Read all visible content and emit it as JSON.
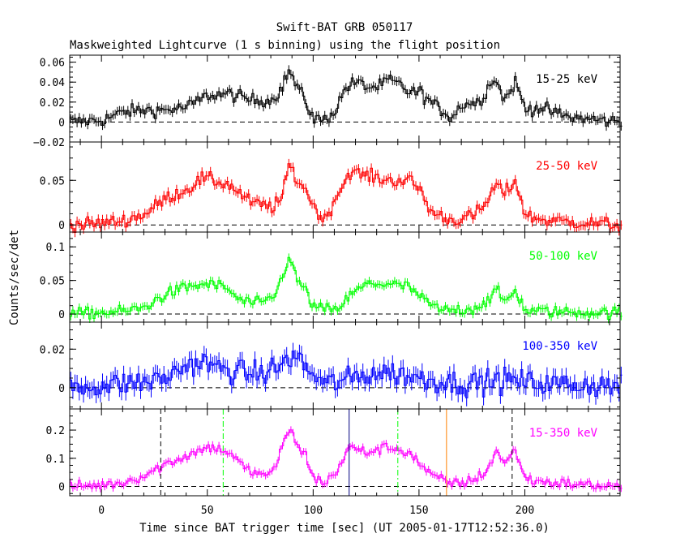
{
  "figure": {
    "title": "Swift-BAT GRB 050117",
    "subtitle": "Maskweighted Lightcurve (1 s binning) using the flight position",
    "xlabel": "Time since BAT trigger time [sec] (UT 2005-01-17T12:52:36.0)",
    "ylabel": "Counts/sec/det"
  },
  "colors": {
    "axes": "#000000",
    "black": "#000000",
    "red": "#ff0000",
    "green": "#00ff00",
    "blue": "#0000ff",
    "magenta": "#ff00ff",
    "orange": "#ff8000",
    "navy": "#000080"
  },
  "chart_data": {
    "type": "line",
    "title": "Swift-BAT GRB 050117",
    "subtitle": "Maskweighted Lightcurve (1 s binning) using the flight position",
    "xlabel": "Time since BAT trigger time [sec] (UT 2005-01-17T12:52:36.0)",
    "ylabel": "Counts/sec/det",
    "xlim": [
      -15,
      245
    ],
    "x_ticks": [
      0,
      50,
      100,
      150,
      200
    ],
    "x_tick_labels": [
      "0",
      "50",
      "100",
      "150",
      "200"
    ],
    "panels": [
      {
        "label": "15-25 keV",
        "color": "#000000",
        "ylim": [
          -0.02,
          0.067
        ],
        "y_ticks": [
          -0.02,
          0,
          0.02,
          0.04,
          0.06
        ],
        "y_tick_labels": [
          "−0.02",
          "0",
          "0.02",
          "0.04",
          "0.06"
        ],
        "envelope": [
          [
            -15,
            0.0
          ],
          [
            0,
            0.002
          ],
          [
            10,
            0.01
          ],
          [
            20,
            0.012
          ],
          [
            30,
            0.012
          ],
          [
            40,
            0.015
          ],
          [
            50,
            0.027
          ],
          [
            60,
            0.028
          ],
          [
            70,
            0.022
          ],
          [
            80,
            0.022
          ],
          [
            85,
            0.035
          ],
          [
            88,
            0.052
          ],
          [
            92,
            0.035
          ],
          [
            96,
            0.02
          ],
          [
            100,
            0.003
          ],
          [
            105,
            0.002
          ],
          [
            110,
            0.012
          ],
          [
            115,
            0.035
          ],
          [
            120,
            0.04
          ],
          [
            125,
            0.035
          ],
          [
            130,
            0.035
          ],
          [
            135,
            0.042
          ],
          [
            140,
            0.038
          ],
          [
            145,
            0.03
          ],
          [
            150,
            0.03
          ],
          [
            155,
            0.02
          ],
          [
            160,
            0.012
          ],
          [
            165,
            0.005
          ],
          [
            170,
            0.018
          ],
          [
            178,
            0.02
          ],
          [
            185,
            0.045
          ],
          [
            190,
            0.022
          ],
          [
            195,
            0.04
          ],
          [
            200,
            0.012
          ],
          [
            205,
            0.015
          ],
          [
            210,
            0.012
          ],
          [
            220,
            0.005
          ],
          [
            230,
            0.003
          ],
          [
            245,
            0.0
          ]
        ],
        "noise": 0.0065
      },
      {
        "label": "25-50 keV",
        "color": "#ff0000",
        "ylim": [
          -0.008,
          0.093
        ],
        "y_ticks": [
          0,
          0.05
        ],
        "y_tick_labels": [
          "0",
          "0.05"
        ],
        "envelope": [
          [
            -15,
            0.0
          ],
          [
            0,
            0.002
          ],
          [
            10,
            0.005
          ],
          [
            20,
            0.012
          ],
          [
            30,
            0.03
          ],
          [
            40,
            0.04
          ],
          [
            47,
            0.052
          ],
          [
            52,
            0.05
          ],
          [
            60,
            0.045
          ],
          [
            70,
            0.025
          ],
          [
            80,
            0.02
          ],
          [
            85,
            0.03
          ],
          [
            88,
            0.068
          ],
          [
            92,
            0.05
          ],
          [
            96,
            0.04
          ],
          [
            100,
            0.02
          ],
          [
            105,
            0.005
          ],
          [
            110,
            0.03
          ],
          [
            117,
            0.06
          ],
          [
            125,
            0.055
          ],
          [
            135,
            0.05
          ],
          [
            145,
            0.05
          ],
          [
            150,
            0.04
          ],
          [
            155,
            0.015
          ],
          [
            165,
            0.005
          ],
          [
            175,
            0.01
          ],
          [
            180,
            0.02
          ],
          [
            186,
            0.045
          ],
          [
            190,
            0.035
          ],
          [
            195,
            0.05
          ],
          [
            200,
            0.01
          ],
          [
            210,
            0.005
          ],
          [
            230,
            0.002
          ],
          [
            245,
            0.0
          ]
        ],
        "noise": 0.0075
      },
      {
        "label": "50-100 keV",
        "color": "#00ff00",
        "ylim": [
          -0.012,
          0.122
        ],
        "y_ticks": [
          0,
          0.05,
          0.1
        ],
        "y_tick_labels": [
          "0",
          "0.05",
          "0.1"
        ],
        "envelope": [
          [
            -15,
            0.0
          ],
          [
            10,
            0.004
          ],
          [
            20,
            0.01
          ],
          [
            25,
            0.02
          ],
          [
            30,
            0.03
          ],
          [
            40,
            0.04
          ],
          [
            50,
            0.045
          ],
          [
            58,
            0.04
          ],
          [
            65,
            0.02
          ],
          [
            75,
            0.015
          ],
          [
            82,
            0.03
          ],
          [
            88,
            0.085
          ],
          [
            92,
            0.05
          ],
          [
            95,
            0.04
          ],
          [
            100,
            0.01
          ],
          [
            110,
            0.005
          ],
          [
            118,
            0.03
          ],
          [
            125,
            0.045
          ],
          [
            135,
            0.045
          ],
          [
            145,
            0.04
          ],
          [
            152,
            0.02
          ],
          [
            160,
            0.005
          ],
          [
            175,
            0.008
          ],
          [
            182,
            0.02
          ],
          [
            186,
            0.035
          ],
          [
            190,
            0.018
          ],
          [
            195,
            0.035
          ],
          [
            200,
            0.005
          ],
          [
            220,
            0.003
          ],
          [
            245,
            0.002
          ]
        ],
        "noise": 0.0085
      },
      {
        "label": "100-350 keV",
        "color": "#0000ff",
        "ylim": [
          -0.011,
          0.034
        ],
        "y_ticks": [
          0,
          0.02
        ],
        "y_tick_labels": [
          "0",
          "0.02"
        ],
        "envelope": [
          [
            -15,
            0.0
          ],
          [
            20,
            0.003
          ],
          [
            30,
            0.005
          ],
          [
            40,
            0.012
          ],
          [
            48,
            0.013
          ],
          [
            55,
            0.01
          ],
          [
            65,
            0.008
          ],
          [
            75,
            0.007
          ],
          [
            85,
            0.012
          ],
          [
            89,
            0.016
          ],
          [
            93,
            0.015
          ],
          [
            98,
            0.008
          ],
          [
            105,
            0.002
          ],
          [
            115,
            0.004
          ],
          [
            125,
            0.007
          ],
          [
            135,
            0.008
          ],
          [
            145,
            0.006
          ],
          [
            155,
            0.004
          ],
          [
            170,
            0.002
          ],
          [
            190,
            0.004
          ],
          [
            210,
            0.002
          ],
          [
            245,
            0.001
          ]
        ],
        "noise": 0.0062
      },
      {
        "label": "15-350 keV",
        "color": "#ff00ff",
        "ylim": [
          -0.033,
          0.275
        ],
        "y_ticks": [
          0,
          0.1,
          0.2
        ],
        "y_tick_labels": [
          "0",
          "0.1",
          "0.2"
        ],
        "envelope": [
          [
            -15,
            0.0
          ],
          [
            0,
            0.005
          ],
          [
            10,
            0.015
          ],
          [
            20,
            0.04
          ],
          [
            30,
            0.08
          ],
          [
            40,
            0.11
          ],
          [
            48,
            0.135
          ],
          [
            52,
            0.14
          ],
          [
            60,
            0.12
          ],
          [
            68,
            0.06
          ],
          [
            75,
            0.04
          ],
          [
            82,
            0.06
          ],
          [
            86,
            0.18
          ],
          [
            89,
            0.2
          ],
          [
            92,
            0.14
          ],
          [
            96,
            0.11
          ],
          [
            100,
            0.03
          ],
          [
            105,
            0.01
          ],
          [
            110,
            0.05
          ],
          [
            117,
            0.14
          ],
          [
            125,
            0.12
          ],
          [
            135,
            0.14
          ],
          [
            145,
            0.12
          ],
          [
            150,
            0.08
          ],
          [
            155,
            0.04
          ],
          [
            165,
            0.01
          ],
          [
            175,
            0.02
          ],
          [
            182,
            0.06
          ],
          [
            186,
            0.13
          ],
          [
            190,
            0.08
          ],
          [
            195,
            0.13
          ],
          [
            200,
            0.025
          ],
          [
            210,
            0.015
          ],
          [
            230,
            0.005
          ],
          [
            245,
            0.0
          ]
        ],
        "noise": 0.018
      }
    ],
    "markers": [
      {
        "x": 28,
        "color": "#000000",
        "style": "dashed"
      },
      {
        "x": 57.5,
        "color": "#00ff00",
        "style": "dashdot"
      },
      {
        "x": 117,
        "color": "#000080",
        "style": "solid"
      },
      {
        "x": 140,
        "color": "#00ff00",
        "style": "dashdot"
      },
      {
        "x": 163,
        "color": "#ff8000",
        "style": "solid"
      },
      {
        "x": 194,
        "color": "#000000",
        "style": "dashed"
      }
    ]
  }
}
